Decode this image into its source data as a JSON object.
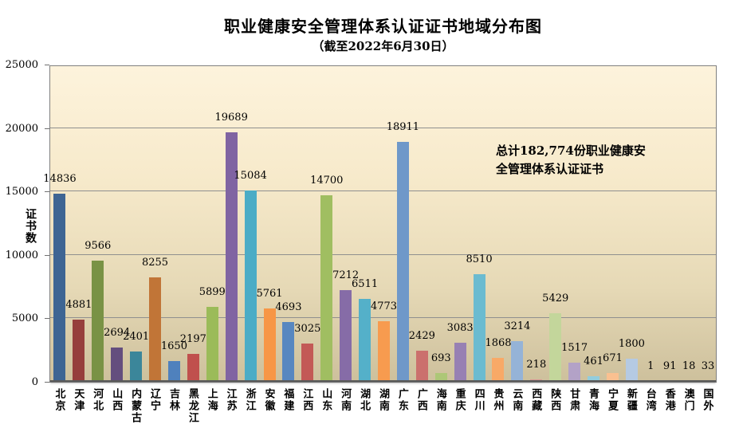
{
  "chart_data": {
    "type": "bar",
    "title": "职业健康安全管理体系认证证书地域分布图",
    "subtitle": "（截至2022年6月30日）",
    "ylabel": "证书数",
    "xlabel": "",
    "ylim": [
      0,
      25000
    ],
    "yticks": [
      0,
      5000,
      10000,
      15000,
      20000,
      25000
    ],
    "grid": true,
    "legend": false,
    "total_shown": "182,774",
    "annotation_lines": [
      "总计182,774份职业健康安",
      "全管理体系认证证书"
    ],
    "categories": [
      "北京",
      "天津",
      "河北",
      "山西",
      "内蒙古",
      "辽宁",
      "吉林",
      "黑龙江",
      "上海",
      "江苏",
      "浙江",
      "安徽",
      "福建",
      "江西",
      "山东",
      "河南",
      "湖北",
      "湖南",
      "广东",
      "广西",
      "海南",
      "重庆",
      "四川",
      "贵州",
      "云南",
      "西藏",
      "陕西",
      "甘肃",
      "青海",
      "宁夏",
      "新疆",
      "台湾",
      "香港",
      "澳门",
      "国外"
    ],
    "values": [
      14836,
      4881,
      9566,
      2694,
      2401,
      8255,
      1650,
      2197,
      5899,
      19689,
      15084,
      5761,
      4693,
      3025,
      14700,
      7212,
      6511,
      4773,
      18911,
      2429,
      693,
      3083,
      8510,
      1868,
      3214,
      218,
      5429,
      1517,
      461,
      671,
      1800,
      1,
      91,
      18,
      33
    ],
    "colors": {
      "base_palette": [
        "#4F81BD",
        "#C0504D",
        "#9BBB59",
        "#8064A2",
        "#4BACC6",
        "#F79646"
      ],
      "cycle_shades": [
        -0.22,
        0,
        0.05,
        0.18,
        0.4,
        0.58
      ],
      "plot_bg_top": "#FDF3DC",
      "plot_bg_bottom": "#CDC09C",
      "gridline": "#8f8f8f",
      "plot_border": "#808080",
      "axis_line": "#5a5a5a",
      "text": "#000000"
    }
  }
}
